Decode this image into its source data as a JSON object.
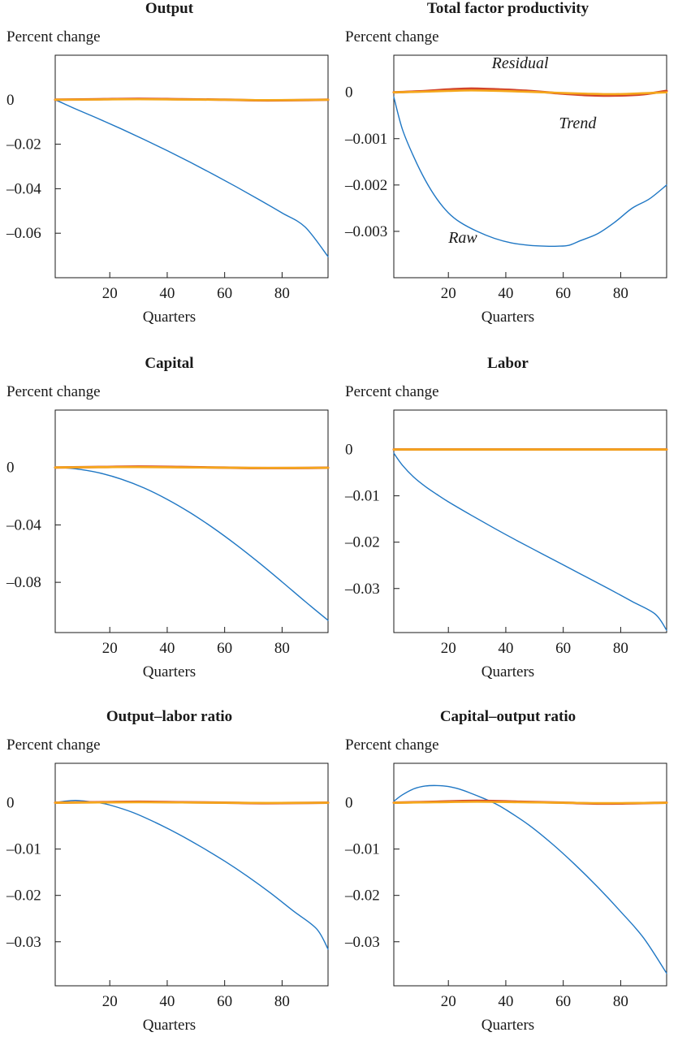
{
  "chart_data": [
    {
      "type": "line",
      "title": "Output",
      "ylabel": "Percent change",
      "xlabel": "Quarters",
      "xlim": [
        1,
        96
      ],
      "ylim": [
        -0.08,
        0.02
      ],
      "xticks": [
        20,
        40,
        60,
        80
      ],
      "yticks": [
        0,
        -0.02,
        -0.04,
        -0.06
      ],
      "ytick_labels": [
        "0",
        "–0.02",
        "–0.04",
        "–0.06"
      ],
      "series": [
        {
          "color": "#1f77c4",
          "x": [
            1,
            8,
            16,
            24,
            32,
            40,
            48,
            56,
            64,
            72,
            80,
            88,
            96
          ],
          "y": [
            0,
            -0.0041,
            -0.0085,
            -0.0131,
            -0.0179,
            -0.0229,
            -0.0281,
            -0.0335,
            -0.0391,
            -0.0449,
            -0.0509,
            -0.0572,
            -0.0705
          ]
        },
        {
          "color": "#d2432a",
          "x": [
            1,
            16,
            30,
            45,
            60,
            75,
            96
          ],
          "y": [
            0,
            0.0002,
            0.0004,
            0.0002,
            0,
            -0.0003,
            0
          ]
        },
        {
          "color": "#f5a81c",
          "x": [
            1,
            16,
            30,
            45,
            60,
            75,
            96
          ],
          "y": [
            0,
            0.0001,
            0.0002,
            0.0001,
            0,
            -0.0002,
            0
          ]
        }
      ]
    },
    {
      "type": "line",
      "title": "Total factor productivity",
      "ylabel": "Percent change",
      "xlabel": "Quarters",
      "xlim": [
        1,
        96
      ],
      "ylim": [
        -0.004,
        0.0008
      ],
      "xticks": [
        20,
        40,
        60,
        80
      ],
      "yticks": [
        0,
        -0.001,
        -0.002,
        -0.003
      ],
      "ytick_labels": [
        "0",
        "–0.001",
        "–0.002",
        "–0.003"
      ],
      "annotations": [
        "Residual",
        "Trend",
        "Raw"
      ],
      "series": [
        {
          "color": "#1f77c4",
          "x": [
            1,
            4,
            8,
            12,
            16,
            20,
            24,
            30,
            36,
            42,
            48,
            54,
            58,
            62,
            66,
            72,
            78,
            84,
            90,
            96
          ],
          "y": [
            -0.0001,
            -0.0008,
            -0.0014,
            -0.0019,
            -0.0023,
            -0.0026,
            -0.0028,
            -0.003,
            -0.00315,
            -0.00325,
            -0.0033,
            -0.00332,
            -0.00332,
            -0.0033,
            -0.0032,
            -0.00305,
            -0.0028,
            -0.0025,
            -0.0023,
            -0.002
          ]
        },
        {
          "color": "#d2432a",
          "x": [
            1,
            10,
            20,
            28,
            38,
            48,
            58,
            68,
            78,
            88,
            96
          ],
          "y": [
            0,
            2e-05,
            6e-05,
            8e-05,
            6e-05,
            3e-05,
            -2e-05,
            -6e-05,
            -7e-05,
            -4e-05,
            3e-05
          ]
        },
        {
          "color": "#f5a81c",
          "x": [
            1,
            10,
            20,
            28,
            38,
            48,
            58,
            68,
            78,
            88,
            96
          ],
          "y": [
            0,
            1e-05,
            3e-05,
            4e-05,
            3e-05,
            1e-05,
            -1e-05,
            -3e-05,
            -4e-05,
            -2e-05,
            0
          ]
        }
      ]
    },
    {
      "type": "line",
      "title": "Capital",
      "ylabel": "Percent change",
      "xlabel": "Quarters",
      "xlim": [
        1,
        96
      ],
      "ylim": [
        -0.115,
        0.04
      ],
      "xticks": [
        20,
        40,
        60,
        80
      ],
      "yticks": [
        0,
        -0.04,
        -0.08
      ],
      "ytick_labels": [
        "0",
        "–0.04",
        "–0.08"
      ],
      "series": [
        {
          "color": "#1f77c4",
          "x": [
            1,
            8,
            16,
            24,
            32,
            40,
            48,
            56,
            64,
            72,
            80,
            88,
            96
          ],
          "y": [
            0,
            -0.0009,
            -0.0036,
            -0.0081,
            -0.0143,
            -0.0222,
            -0.0315,
            -0.0421,
            -0.0538,
            -0.0664,
            -0.0797,
            -0.0933,
            -0.1065
          ]
        },
        {
          "color": "#d2432a",
          "x": [
            1,
            16,
            30,
            45,
            60,
            75,
            96
          ],
          "y": [
            0,
            0.0003,
            0.0006,
            0.0003,
            -0.0001,
            -0.0004,
            -0.0002
          ]
        },
        {
          "color": "#f5a81c",
          "x": [
            1,
            16,
            30,
            45,
            60,
            75,
            96
          ],
          "y": [
            0,
            0.0002,
            0.0003,
            0.0001,
            -0.0001,
            -0.0003,
            -0.0002
          ]
        }
      ]
    },
    {
      "type": "line",
      "title": "Labor",
      "ylabel": "Percent change",
      "xlabel": "Quarters",
      "xlim": [
        1,
        96
      ],
      "ylim": [
        -0.0395,
        0.0085
      ],
      "xticks": [
        20,
        40,
        60,
        80
      ],
      "yticks": [
        0,
        -0.01,
        -0.02,
        -0.03
      ],
      "ytick_labels": [
        "0",
        "–0.01",
        "–0.02",
        "–0.03"
      ],
      "series": [
        {
          "color": "#1f77c4",
          "x": [
            1,
            4,
            8,
            12,
            16,
            20,
            28,
            36,
            44,
            52,
            60,
            68,
            76,
            84,
            92,
            96
          ],
          "y": [
            -0.0008,
            -0.0034,
            -0.006,
            -0.008,
            -0.0097,
            -0.0113,
            -0.0142,
            -0.017,
            -0.0197,
            -0.0223,
            -0.0249,
            -0.0275,
            -0.0301,
            -0.0328,
            -0.0355,
            -0.039
          ]
        },
        {
          "color": "#d2432a",
          "x": [
            1,
            96
          ],
          "y": [
            0,
            0
          ]
        },
        {
          "color": "#f5a81c",
          "x": [
            1,
            96
          ],
          "y": [
            0,
            0
          ]
        }
      ]
    },
    {
      "type": "line",
      "title": "Output–labor ratio",
      "ylabel": "Percent change",
      "xlabel": "Quarters",
      "xlim": [
        1,
        96
      ],
      "ylim": [
        -0.0395,
        0.0085
      ],
      "xticks": [
        20,
        40,
        60,
        80
      ],
      "yticks": [
        0,
        -0.01,
        -0.02,
        -0.03
      ],
      "ytick_labels": [
        "0",
        "–0.01",
        "–0.02",
        "–0.03"
      ],
      "series": [
        {
          "color": "#1f77c4",
          "x": [
            1,
            4,
            8,
            12,
            16,
            20,
            28,
            36,
            44,
            52,
            60,
            68,
            76,
            84,
            92,
            96
          ],
          "y": [
            0,
            0.0003,
            0.0005,
            0.0003,
            0,
            -0.0005,
            -0.0021,
            -0.0043,
            -0.0068,
            -0.0096,
            -0.0126,
            -0.0159,
            -0.0195,
            -0.0234,
            -0.0272,
            -0.0316
          ]
        },
        {
          "color": "#d2432a",
          "x": [
            1,
            16,
            30,
            45,
            60,
            75,
            96
          ],
          "y": [
            0,
            0.0001,
            0.0002,
            0.0001,
            0,
            -0.0001,
            0
          ]
        },
        {
          "color": "#f5a81c",
          "x": [
            1,
            16,
            30,
            45,
            60,
            75,
            96
          ],
          "y": [
            0,
            5e-05,
            0.0001,
            5e-05,
            0,
            -5e-05,
            0
          ]
        }
      ]
    },
    {
      "type": "line",
      "title": "Capital–output ratio",
      "ylabel": "Percent change",
      "xlabel": "Quarters",
      "xlim": [
        1,
        96
      ],
      "ylim": [
        -0.0395,
        0.0085
      ],
      "xticks": [
        20,
        40,
        60,
        80
      ],
      "yticks": [
        0,
        -0.01,
        -0.02,
        -0.03
      ],
      "ytick_labels": [
        "0",
        "–0.01",
        "–0.02",
        "–0.03"
      ],
      "series": [
        {
          "color": "#1f77c4",
          "x": [
            1,
            4,
            8,
            12,
            16,
            20,
            24,
            28,
            32,
            36,
            40,
            48,
            56,
            64,
            72,
            80,
            88,
            96
          ],
          "y": [
            0.0003,
            0.0017,
            0.003,
            0.0036,
            0.0037,
            0.0035,
            0.0029,
            0.002,
            0.001,
            -0.0001,
            -0.0015,
            -0.0048,
            -0.0088,
            -0.0133,
            -0.0182,
            -0.0235,
            -0.0292,
            -0.0368
          ]
        },
        {
          "color": "#d2432a",
          "x": [
            1,
            16,
            30,
            45,
            60,
            75,
            96
          ],
          "y": [
            0,
            0.0002,
            0.0004,
            0.0002,
            0,
            -0.0002,
            0
          ]
        },
        {
          "color": "#f5a81c",
          "x": [
            1,
            16,
            30,
            45,
            60,
            75,
            96
          ],
          "y": [
            0,
            0.0001,
            0.0002,
            0.0001,
            0,
            -0.0001,
            0
          ]
        }
      ]
    }
  ]
}
